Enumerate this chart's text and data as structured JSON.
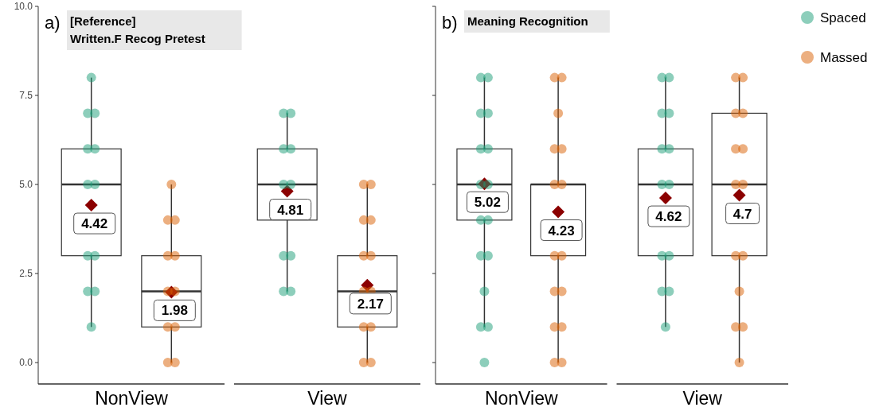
{
  "chart_data": [
    {
      "type": "box",
      "title": "[Reference]\nWritten.F Recog Pretest",
      "annotations": [
        "a)"
      ],
      "categories": [
        "NonView",
        "View"
      ],
      "ylim": [
        -0.6,
        10
      ],
      "yticks": [
        {
          "value": 0,
          "label": "0.0"
        },
        {
          "value": 2.5,
          "label": "2.5"
        },
        {
          "value": 5,
          "label": "5.0"
        },
        {
          "value": 7.5,
          "label": "7.5"
        },
        {
          "value": 10,
          "label": "10.0"
        }
      ],
      "grid": false,
      "series": [
        {
          "color": "#333333",
          "boxes": [
            {
              "low": 1,
              "q1": 3,
              "median": 5,
              "q3": 6,
              "high": 8,
              "mean": 4.42
            },
            {
              "low": 2,
              "q1": 4,
              "median": 5,
              "q3": 6,
              "high": 7,
              "mean": 4.81
            }
          ],
          "value_labels": [
            "4.42",
            "4.81"
          ]
        },
        {
          "color": "#333333",
          "boxes": [
            {
              "low": 0,
              "q1": 1,
              "median": 2,
              "q3": 3,
              "high": 5,
              "mean": 1.98
            },
            {
              "low": 0,
              "q1": 1,
              "median": 2,
              "q3": 3,
              "high": 5,
              "mean": 2.17
            }
          ],
          "value_labels": [
            "1.98",
            "2.17"
          ]
        },
        {
          "type": "scatter",
          "color": "#1b9e77",
          "x": [
            "NonView",
            "NonView",
            "NonView",
            "NonView",
            "NonView",
            "NonView",
            "NonView",
            "NonView",
            "NonView",
            "NonView",
            "NonView",
            "NonView",
            "View",
            "View",
            "View",
            "View",
            "View",
            "View",
            "View",
            "View",
            "View",
            "View",
            "View",
            "View"
          ],
          "values": [
            8,
            7,
            7,
            6,
            6,
            5,
            5,
            3,
            3,
            2,
            2,
            1,
            7,
            7,
            6,
            6,
            5,
            5,
            null,
            null,
            3,
            3,
            2,
            2
          ]
        },
        {
          "type": "scatter",
          "color": "#d95f02",
          "x": [
            "NonView",
            "NonView",
            "NonView",
            "NonView",
            "NonView",
            "NonView",
            "NonView",
            "NonView",
            "NonView",
            "NonView",
            "NonView",
            "View",
            "View",
            "View",
            "View",
            "View",
            "View",
            "View",
            "View",
            "View",
            "View",
            "View",
            "View"
          ],
          "values": [
            5,
            4,
            4,
            3,
            3,
            2,
            2,
            1,
            1,
            0,
            0,
            5,
            5,
            4,
            4,
            3,
            3,
            2,
            2,
            1,
            1,
            0,
            0
          ]
        }
      ]
    },
    {
      "type": "box",
      "title": "Meaning Recognition",
      "annotations": [
        "b)"
      ],
      "categories": [
        "NonView",
        "View"
      ],
      "ylim": [
        -0.6,
        10
      ],
      "yticks": [
        0,
        2.5,
        5,
        7.5,
        10
      ],
      "tick_labels": "x",
      "grid": false,
      "legend": "top right",
      "series": [
        {
          "color": "#333333",
          "boxes": [
            {
              "low": 1,
              "q1": 4,
              "median": 5,
              "q3": 6,
              "high": 8,
              "mean": 5.02
            },
            {
              "low": 1,
              "q1": 3,
              "median": 5,
              "q3": 6,
              "high": 8,
              "mean": 4.62
            }
          ],
          "value_labels": [
            "5.02",
            "4.62"
          ]
        },
        {
          "color": "#333333",
          "boxes": [
            {
              "low": 0,
              "q1": 3,
              "median": 5,
              "q3": 5,
              "high": 8,
              "mean": 4.23
            },
            {
              "low": 0,
              "q1": 3,
              "median": 5,
              "q3": 7,
              "high": 8,
              "mean": 4.7
            }
          ],
          "value_labels": [
            "4.23",
            "4.7"
          ]
        },
        {
          "type": "scatter",
          "name": "Spaced",
          "color": "#1b9e77",
          "x": [
            "NonView",
            "NonView",
            "NonView",
            "NonView",
            "NonView",
            "NonView",
            "NonView",
            "NonView",
            "NonView",
            "NonView",
            "NonView",
            "NonView",
            "NonView",
            "NonView",
            "NonView",
            "NonView",
            "View",
            "View",
            "View",
            "View",
            "View",
            "View",
            "View",
            "View",
            "View",
            "View",
            "View",
            "View",
            "View"
          ],
          "values": [
            8,
            8,
            7,
            7,
            6,
            6,
            5,
            5,
            4,
            4,
            3,
            3,
            2,
            1,
            1,
            0,
            8,
            8,
            7,
            7,
            6,
            6,
            5,
            5,
            3,
            3,
            2,
            2,
            1
          ]
        },
        {
          "type": "scatter",
          "name": "Massed",
          "color": "#d95f02",
          "x": [
            "NonView",
            "NonView",
            "NonView",
            "NonView",
            "NonView",
            "NonView",
            "NonView",
            "NonView",
            "NonView",
            "NonView",
            "NonView",
            "NonView",
            "NonView",
            "NonView",
            "NonView",
            "NonView",
            "View",
            "View",
            "View",
            "View",
            "View",
            "View",
            "View",
            "View",
            "View",
            "View",
            "View",
            "View",
            "View",
            "View"
          ],
          "values": [
            8,
            8,
            7,
            6,
            6,
            5,
            5,
            null,
            3,
            3,
            2,
            2,
            1,
            1,
            0,
            0,
            8,
            8,
            7,
            7,
            6,
            6,
            5,
            5,
            3,
            3,
            2,
            1,
            1,
            0
          ]
        }
      ]
    }
  ]
}
